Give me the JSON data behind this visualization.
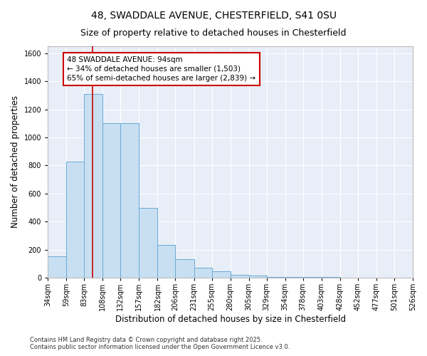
{
  "title_line1": "48, SWADDALE AVENUE, CHESTERFIELD, S41 0SU",
  "title_line2": "Size of property relative to detached houses in Chesterfield",
  "xlabel": "Distribution of detached houses by size in Chesterfield",
  "ylabel": "Number of detached properties",
  "bar_color": "#c8dff2",
  "bar_edge_color": "#6aaad4",
  "background_color": "#e8eef8",
  "grid_color": "#ffffff",
  "bin_edges": [
    34,
    59,
    83,
    108,
    132,
    157,
    182,
    206,
    231,
    255,
    280,
    305,
    329,
    354,
    378,
    403,
    428,
    452,
    477,
    501,
    526
  ],
  "bar_heights": [
    150,
    830,
    1310,
    1100,
    1100,
    500,
    235,
    130,
    70,
    45,
    20,
    15,
    5,
    5,
    5,
    5,
    2,
    2,
    2,
    2
  ],
  "red_line_x": 94,
  "red_line_color": "#cc0000",
  "annotation_text": "48 SWADDALE AVENUE: 94sqm\n← 34% of detached houses are smaller (1,503)\n65% of semi-detached houses are larger (2,839) →",
  "annotation_box_color": "#cc0000",
  "annotation_box_fill": "#ffffff",
  "ylim": [
    0,
    1650
  ],
  "yticks": [
    0,
    200,
    400,
    600,
    800,
    1000,
    1200,
    1400,
    1600
  ],
  "footnote": "Contains HM Land Registry data © Crown copyright and database right 2025.\nContains public sector information licensed under the Open Government Licence v3.0.",
  "title_fontsize": 10,
  "subtitle_fontsize": 9,
  "axis_label_fontsize": 8.5,
  "tick_fontsize": 7,
  "footnote_fontsize": 6,
  "annotation_fontsize": 7.5
}
